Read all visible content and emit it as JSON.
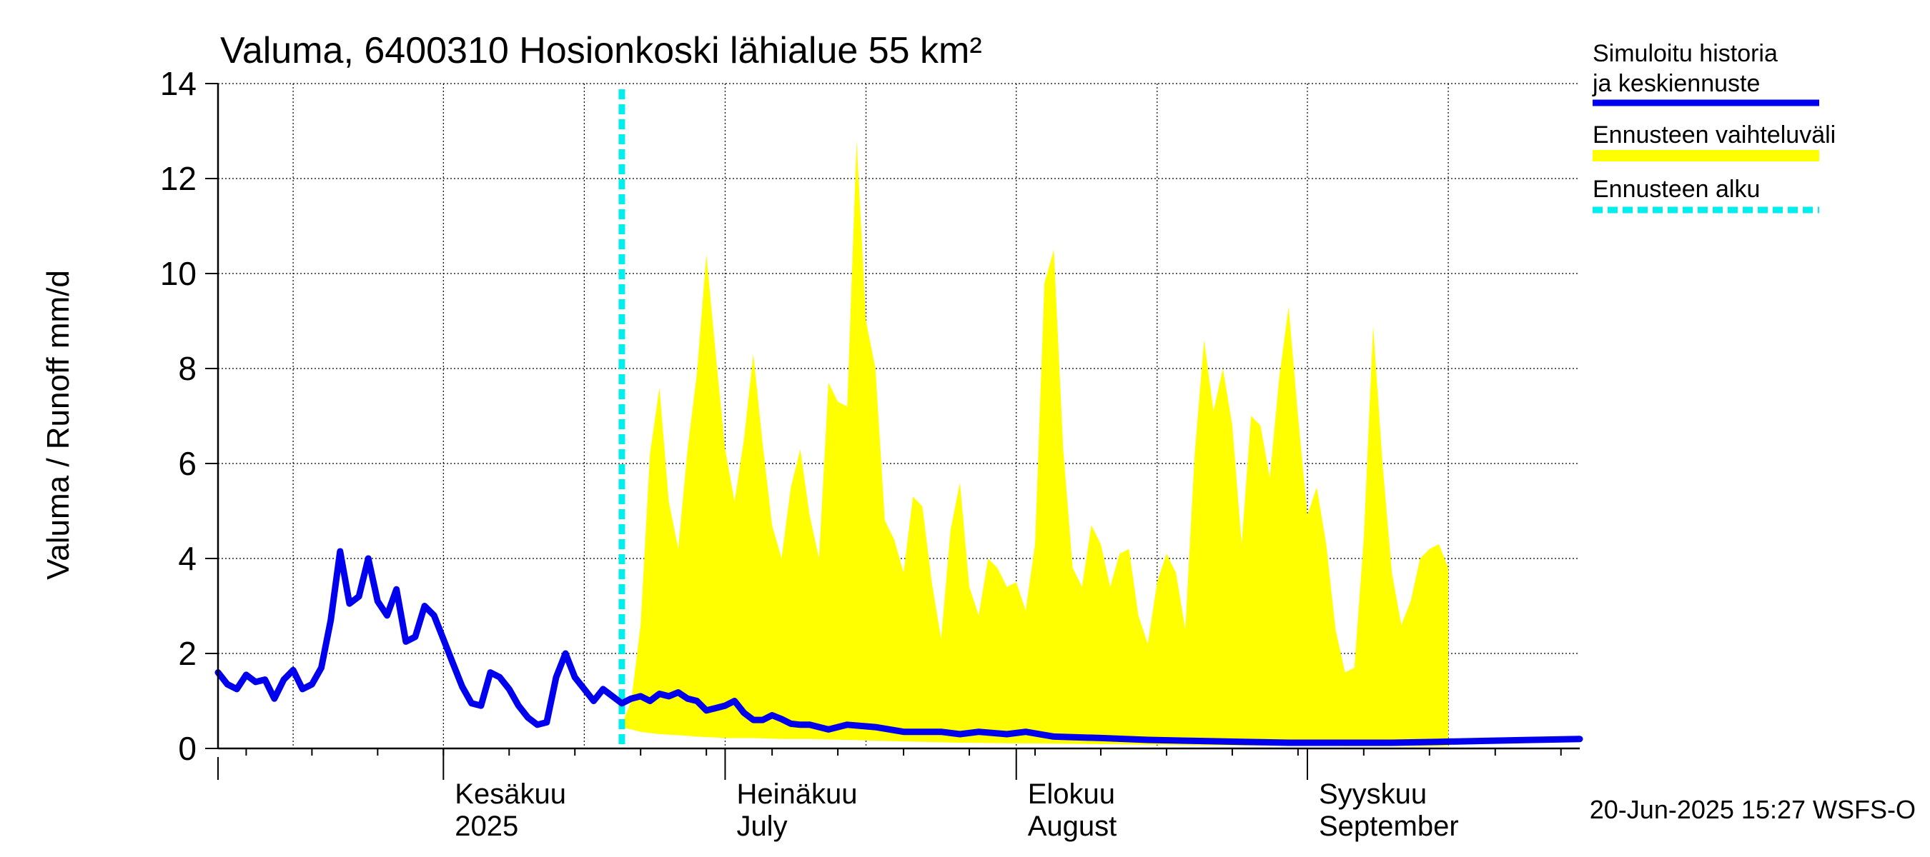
{
  "chart_data": {
    "type": "line",
    "title": "Valuma, 6400310 Hosionkoski lähialue 55 km²",
    "ylabel": "Valuma / Runoff    mm/d",
    "ylim": [
      0,
      14
    ],
    "yticks": [
      0,
      2,
      4,
      6,
      8,
      10,
      12,
      14
    ],
    "xlim": [
      "2025-05-08",
      "2025-09-30"
    ],
    "grid": true,
    "legend_position": "right",
    "x_month_labels": [
      {
        "date": "2025-06-01",
        "line1": "Kesäkuu",
        "line2": "2025"
      },
      {
        "date": "2025-07-01",
        "line1": "Heinäkuu",
        "line2": "July"
      },
      {
        "date": "2025-08-01",
        "line1": "Elokuu",
        "line2": "August"
      },
      {
        "date": "2025-09-01",
        "line1": "Syyskuu",
        "line2": "September"
      }
    ],
    "forecast_start": "2025-06-20",
    "legend": [
      {
        "label": "Simuloitu historia ja keskiennuste",
        "color": "#0000ee",
        "style": "solid"
      },
      {
        "label": "Ennusteen vaihteluväli",
        "color": "#ffff00",
        "style": "band"
      },
      {
        "label": "Ennusteen alku",
        "color": "#00eeee",
        "style": "dashed"
      }
    ],
    "footer": "20-Jun-2025 15:27 WSFS-O",
    "series": [
      {
        "name": "Simuloitu historia ja keskiennuste",
        "color": "#0000ee",
        "points": [
          [
            "2025-05-08",
            1.6
          ],
          [
            "2025-05-09",
            1.35
          ],
          [
            "2025-05-10",
            1.25
          ],
          [
            "2025-05-11",
            1.55
          ],
          [
            "2025-05-12",
            1.4
          ],
          [
            "2025-05-13",
            1.45
          ],
          [
            "2025-05-14",
            1.05
          ],
          [
            "2025-05-15",
            1.45
          ],
          [
            "2025-05-16",
            1.65
          ],
          [
            "2025-05-17",
            1.25
          ],
          [
            "2025-05-18",
            1.35
          ],
          [
            "2025-05-19",
            1.7
          ],
          [
            "2025-05-20",
            2.7
          ],
          [
            "2025-05-21",
            4.15
          ],
          [
            "2025-05-22",
            3.05
          ],
          [
            "2025-05-23",
            3.2
          ],
          [
            "2025-05-24",
            4.0
          ],
          [
            "2025-05-25",
            3.1
          ],
          [
            "2025-05-26",
            2.8
          ],
          [
            "2025-05-27",
            3.35
          ],
          [
            "2025-05-28",
            2.25
          ],
          [
            "2025-05-29",
            2.35
          ],
          [
            "2025-05-30",
            3.0
          ],
          [
            "2025-05-31",
            2.8
          ],
          [
            "2025-06-01",
            2.3
          ],
          [
            "2025-06-02",
            1.8
          ],
          [
            "2025-06-03",
            1.3
          ],
          [
            "2025-06-04",
            0.95
          ],
          [
            "2025-06-05",
            0.9
          ],
          [
            "2025-06-06",
            1.6
          ],
          [
            "2025-06-07",
            1.5
          ],
          [
            "2025-06-08",
            1.25
          ],
          [
            "2025-06-09",
            0.9
          ],
          [
            "2025-06-10",
            0.65
          ],
          [
            "2025-06-11",
            0.5
          ],
          [
            "2025-06-12",
            0.55
          ],
          [
            "2025-06-13",
            1.5
          ],
          [
            "2025-06-14",
            2.0
          ],
          [
            "2025-06-15",
            1.5
          ],
          [
            "2025-06-16",
            1.25
          ],
          [
            "2025-06-17",
            1.0
          ],
          [
            "2025-06-18",
            1.25
          ],
          [
            "2025-06-19",
            1.1
          ],
          [
            "2025-06-20",
            0.95
          ],
          [
            "2025-06-21",
            1.05
          ],
          [
            "2025-06-22",
            1.1
          ],
          [
            "2025-06-23",
            1.0
          ],
          [
            "2025-06-24",
            1.15
          ],
          [
            "2025-06-25",
            1.1
          ],
          [
            "2025-06-26",
            1.18
          ],
          [
            "2025-06-27",
            1.05
          ],
          [
            "2025-06-28",
            1.0
          ],
          [
            "2025-06-29",
            0.8
          ],
          [
            "2025-06-30",
            0.85
          ],
          [
            "2025-07-01",
            0.9
          ],
          [
            "2025-07-02",
            1.0
          ],
          [
            "2025-07-03",
            0.75
          ],
          [
            "2025-07-04",
            0.6
          ],
          [
            "2025-07-05",
            0.6
          ],
          [
            "2025-07-06",
            0.7
          ],
          [
            "2025-07-07",
            0.62
          ],
          [
            "2025-07-08",
            0.52
          ],
          [
            "2025-07-09",
            0.5
          ],
          [
            "2025-07-10",
            0.5
          ],
          [
            "2025-07-12",
            0.4
          ],
          [
            "2025-07-14",
            0.5
          ],
          [
            "2025-07-17",
            0.45
          ],
          [
            "2025-07-20",
            0.35
          ],
          [
            "2025-07-24",
            0.35
          ],
          [
            "2025-07-26",
            0.3
          ],
          [
            "2025-07-28",
            0.35
          ],
          [
            "2025-07-31",
            0.3
          ],
          [
            "2025-08-02",
            0.35
          ],
          [
            "2025-08-05",
            0.25
          ],
          [
            "2025-08-10",
            0.22
          ],
          [
            "2025-08-15",
            0.18
          ],
          [
            "2025-08-20",
            0.16
          ],
          [
            "2025-08-25",
            0.14
          ],
          [
            "2025-08-30",
            0.12
          ],
          [
            "2025-09-05",
            0.12
          ],
          [
            "2025-09-10",
            0.12
          ],
          [
            "2025-09-15",
            0.14
          ],
          [
            "2025-09-20",
            0.16
          ],
          [
            "2025-09-25",
            0.18
          ],
          [
            "2025-09-30",
            0.2
          ]
        ]
      }
    ],
    "band": {
      "name": "Ennusteen vaihteluväli",
      "color": "#ffff00",
      "upper": [
        [
          "2025-06-20",
          0.5
        ],
        [
          "2025-06-21",
          1.0
        ],
        [
          "2025-06-22",
          2.6
        ],
        [
          "2025-06-23",
          6.2
        ],
        [
          "2025-06-24",
          7.6
        ],
        [
          "2025-06-25",
          5.2
        ],
        [
          "2025-06-26",
          4.2
        ],
        [
          "2025-06-27",
          6.3
        ],
        [
          "2025-06-28",
          7.9
        ],
        [
          "2025-06-29",
          10.4
        ],
        [
          "2025-06-30",
          8.3
        ],
        [
          "2025-07-01",
          6.3
        ],
        [
          "2025-07-02",
          5.2
        ],
        [
          "2025-07-03",
          6.5
        ],
        [
          "2025-07-04",
          8.3
        ],
        [
          "2025-07-05",
          6.4
        ],
        [
          "2025-07-06",
          4.7
        ],
        [
          "2025-07-07",
          4.0
        ],
        [
          "2025-07-08",
          5.5
        ],
        [
          "2025-07-09",
          6.3
        ],
        [
          "2025-07-10",
          4.9
        ],
        [
          "2025-07-11",
          4.0
        ],
        [
          "2025-07-12",
          7.7
        ],
        [
          "2025-07-13",
          7.3
        ],
        [
          "2025-07-14",
          7.2
        ],
        [
          "2025-07-15",
          12.8
        ],
        [
          "2025-07-16",
          9.0
        ],
        [
          "2025-07-17",
          8.0
        ],
        [
          "2025-07-18",
          4.8
        ],
        [
          "2025-07-19",
          4.4
        ],
        [
          "2025-07-20",
          3.7
        ],
        [
          "2025-07-21",
          5.3
        ],
        [
          "2025-07-22",
          5.1
        ],
        [
          "2025-07-23",
          3.5
        ],
        [
          "2025-07-24",
          2.3
        ],
        [
          "2025-07-25",
          4.6
        ],
        [
          "2025-07-26",
          5.6
        ],
        [
          "2025-07-27",
          3.4
        ],
        [
          "2025-07-28",
          2.8
        ],
        [
          "2025-07-29",
          4.0
        ],
        [
          "2025-07-30",
          3.8
        ],
        [
          "2025-07-31",
          3.4
        ],
        [
          "2025-08-01",
          3.5
        ],
        [
          "2025-08-02",
          2.9
        ],
        [
          "2025-08-03",
          4.3
        ],
        [
          "2025-08-04",
          9.8
        ],
        [
          "2025-08-05",
          10.5
        ],
        [
          "2025-08-06",
          6.3
        ],
        [
          "2025-08-07",
          3.8
        ],
        [
          "2025-08-08",
          3.4
        ],
        [
          "2025-08-09",
          4.7
        ],
        [
          "2025-08-10",
          4.3
        ],
        [
          "2025-08-11",
          3.4
        ],
        [
          "2025-08-12",
          4.1
        ],
        [
          "2025-08-13",
          4.2
        ],
        [
          "2025-08-14",
          2.8
        ],
        [
          "2025-08-15",
          2.2
        ],
        [
          "2025-08-16",
          3.5
        ],
        [
          "2025-08-17",
          4.1
        ],
        [
          "2025-08-18",
          3.7
        ],
        [
          "2025-08-19",
          2.5
        ],
        [
          "2025-08-20",
          6.2
        ],
        [
          "2025-08-21",
          8.6
        ],
        [
          "2025-08-22",
          7.1
        ],
        [
          "2025-08-23",
          8.0
        ],
        [
          "2025-08-24",
          6.8
        ],
        [
          "2025-08-25",
          4.3
        ],
        [
          "2025-08-26",
          7.0
        ],
        [
          "2025-08-27",
          6.8
        ],
        [
          "2025-08-28",
          5.7
        ],
        [
          "2025-08-29",
          7.8
        ],
        [
          "2025-08-30",
          9.3
        ],
        [
          "2025-08-31",
          7.0
        ],
        [
          "2025-09-01",
          4.9
        ],
        [
          "2025-09-02",
          5.5
        ],
        [
          "2025-09-03",
          4.3
        ],
        [
          "2025-09-04",
          2.5
        ],
        [
          "2025-09-05",
          1.6
        ],
        [
          "2025-09-06",
          1.7
        ],
        [
          "2025-09-07",
          4.4
        ],
        [
          "2025-09-08",
          8.9
        ],
        [
          "2025-09-09",
          6.0
        ],
        [
          "2025-09-10",
          3.7
        ],
        [
          "2025-09-11",
          2.6
        ],
        [
          "2025-09-12",
          3.1
        ],
        [
          "2025-09-13",
          4.0
        ],
        [
          "2025-09-14",
          4.2
        ],
        [
          "2025-09-15",
          4.3
        ],
        [
          "2025-09-16",
          3.8
        ]
      ],
      "lower": [
        [
          "2025-06-20",
          0.45
        ],
        [
          "2025-06-22",
          0.35
        ],
        [
          "2025-06-24",
          0.3
        ],
        [
          "2025-06-26",
          0.28
        ],
        [
          "2025-06-28",
          0.25
        ],
        [
          "2025-07-01",
          0.22
        ],
        [
          "2025-07-04",
          0.22
        ],
        [
          "2025-07-07",
          0.2
        ],
        [
          "2025-07-10",
          0.2
        ],
        [
          "2025-07-14",
          0.18
        ],
        [
          "2025-07-18",
          0.16
        ],
        [
          "2025-07-22",
          0.14
        ],
        [
          "2025-07-26",
          0.12
        ],
        [
          "2025-07-31",
          0.11
        ],
        [
          "2025-08-05",
          0.1
        ],
        [
          "2025-08-10",
          0.09
        ],
        [
          "2025-08-15",
          0.08
        ],
        [
          "2025-08-20",
          0.07
        ],
        [
          "2025-08-25",
          0.06
        ],
        [
          "2025-08-31",
          0.06
        ],
        [
          "2025-09-05",
          0.05
        ],
        [
          "2025-09-10",
          0.05
        ],
        [
          "2025-09-16",
          0.05
        ]
      ]
    }
  }
}
